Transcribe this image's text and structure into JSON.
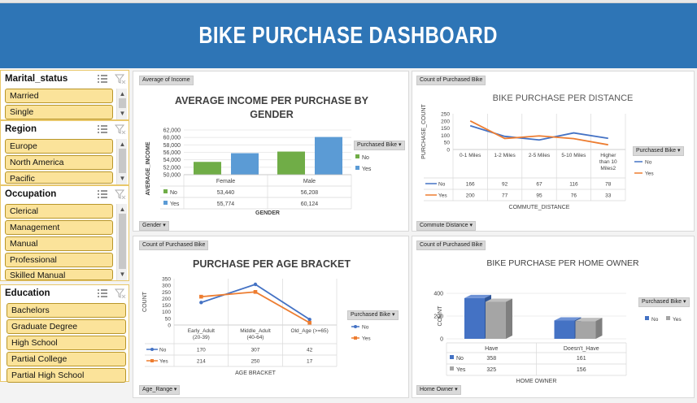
{
  "dashboard": {
    "title": "BIKE PURCHASE DASHBOARD"
  },
  "colors": {
    "banner": "#2e75b6",
    "no": "#4472c4",
    "yes": "#ed7d31",
    "green": "#70ad47",
    "light_blue": "#5b9bd5",
    "slicer_item": "#fbe39a",
    "slicer_border": "#e8c76a",
    "gray": "#a5a5a5"
  },
  "slicers": [
    {
      "title": "Marital_status",
      "items": [
        "Married",
        "Single"
      ]
    },
    {
      "title": "Region",
      "items": [
        "Europe",
        "North America",
        "Pacific"
      ]
    },
    {
      "title": "Occupation",
      "items": [
        "Clerical",
        "Management",
        "Manual",
        "Professional",
        "Skilled Manual"
      ]
    },
    {
      "title": "Education",
      "items": [
        "Bachelors",
        "Graduate Degree",
        "High School",
        "Partial College",
        "Partial High School"
      ]
    }
  ],
  "charts": {
    "income": {
      "value_button": "Average of Income",
      "axis_button": "Gender",
      "legend_button": "Purchased Bike",
      "title_line1": "AVERAGE INCOME PER PURCHASE BY",
      "title_line2": "GENDER",
      "xlabel": "GENDER",
      "ylabel": "AVERAGE_INCOME",
      "yticks": [
        "62,000",
        "60,000",
        "58,000",
        "56,000",
        "54,000",
        "52,000",
        "50,000"
      ],
      "legend": [
        "No",
        "Yes"
      ]
    },
    "distance": {
      "value_button": "Count of Purchased Bike",
      "axis_button": "Commute Distance",
      "legend_button": "Purchased Bike",
      "title": "BIKE PURCHASE PER DISTANCE",
      "xlabel": "COMMUTE_DISTANCE",
      "ylabel": "PURCHASE_COUNT",
      "yticks": [
        "250",
        "200",
        "150",
        "100",
        "50",
        "0"
      ],
      "legend": [
        "No",
        "Yes"
      ]
    },
    "age": {
      "value_button": "Count of Purchased Bike",
      "axis_button": "Age_Range",
      "legend_button": "Purchased Bike",
      "title": "PURCHASE PER AGE BRACKET",
      "xlabel": "AGE BRACKET",
      "ylabel": "COUNT",
      "yticks": [
        "350",
        "300",
        "250",
        "200",
        "150",
        "100",
        "50",
        "0"
      ],
      "legend": [
        "No",
        "Yes"
      ]
    },
    "home": {
      "value_button": "Count of Purchased Bike",
      "axis_button": "Home Owner",
      "legend_button": "Purchased Bike",
      "title": "BIKE PURCHASE PER HOME OWNER",
      "xlabel": "HOME OWNER",
      "ylabel": "COUNT",
      "yticks": [
        "400",
        "200",
        "0"
      ],
      "legend": [
        "No",
        "Yes"
      ]
    }
  },
  "chart_data": [
    {
      "type": "bar",
      "title": "AVERAGE INCOME PER PURCHASE BY GENDER",
      "xlabel": "GENDER",
      "ylabel": "AVERAGE_INCOME",
      "categories": [
        "Female",
        "Male"
      ],
      "ylim": [
        50000,
        62000
      ],
      "legend_position": "right",
      "series": [
        {
          "name": "No",
          "values": [
            53440,
            56208
          ],
          "labels": [
            "53,440",
            "56,208"
          ]
        },
        {
          "name": "Yes",
          "values": [
            55774,
            60124
          ],
          "labels": [
            "55,774",
            "60,124"
          ]
        }
      ]
    },
    {
      "type": "line",
      "title": "BIKE PURCHASE PER DISTANCE",
      "xlabel": "COMMUTE_DISTANCE",
      "ylabel": "PURCHASE_COUNT",
      "categories": [
        "0-1 Miles",
        "1-2 Miles",
        "2-5 Miles",
        "5-10 Miles",
        "Higher than 10 Miles2"
      ],
      "ylim": [
        0,
        250
      ],
      "legend_position": "right",
      "series": [
        {
          "name": "No",
          "values": [
            166,
            92,
            67,
            116,
            78
          ]
        },
        {
          "name": "Yes",
          "values": [
            200,
            77,
            95,
            76,
            33
          ]
        }
      ]
    },
    {
      "type": "line",
      "title": "PURCHASE PER AGE BRACKET",
      "xlabel": "AGE BRACKET",
      "ylabel": "COUNT",
      "categories": [
        "Early_Adult|(20-39)",
        "Middle_Adult|(40-64)",
        "Old_Age (>=65)"
      ],
      "ylim": [
        0,
        350
      ],
      "legend_position": "right",
      "series": [
        {
          "name": "No",
          "values": [
            170,
            307,
            42
          ]
        },
        {
          "name": "Yes",
          "values": [
            214,
            250,
            17
          ]
        }
      ]
    },
    {
      "type": "bar",
      "title": "BIKE PURCHASE PER HOME OWNER",
      "xlabel": "HOME OWNER",
      "ylabel": "COUNT",
      "categories": [
        "Have",
        "Doesn't_Have"
      ],
      "ylim": [
        0,
        400
      ],
      "legend_position": "right",
      "series": [
        {
          "name": "No",
          "values": [
            358,
            161
          ]
        },
        {
          "name": "Yes",
          "values": [
            325,
            156
          ]
        }
      ]
    }
  ]
}
